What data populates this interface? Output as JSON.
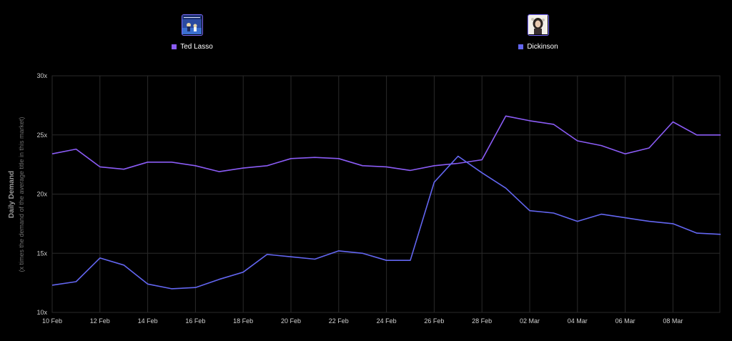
{
  "legend": [
    {
      "name": "Ted Lasso",
      "color": "#8b5cf6",
      "thumb_icon": "ted-lasso-poster"
    },
    {
      "name": "Dickinson",
      "color": "#6366f1",
      "thumb_icon": "dickinson-poster"
    }
  ],
  "chart_data": {
    "type": "line",
    "ylabel": "Daily Demand",
    "ylabel_sub": "(x times the demand of the average title in this market)",
    "xlabel": "",
    "ylim": [
      10,
      30
    ],
    "yticks": [
      10,
      15,
      20,
      25,
      30
    ],
    "ytick_labels": [
      "10x",
      "15x",
      "20x",
      "25x",
      "30x"
    ],
    "grid": true,
    "legend_position": "top",
    "x": [
      "10 Feb",
      "11 Feb",
      "12 Feb",
      "13 Feb",
      "14 Feb",
      "15 Feb",
      "16 Feb",
      "17 Feb",
      "18 Feb",
      "19 Feb",
      "20 Feb",
      "21 Feb",
      "22 Feb",
      "23 Feb",
      "24 Feb",
      "25 Feb",
      "26 Feb",
      "27 Feb",
      "28 Feb",
      "01 Mar",
      "02 Mar",
      "03 Mar",
      "04 Mar",
      "05 Mar",
      "06 Mar",
      "07 Mar",
      "08 Mar",
      "09 Mar",
      "10 Mar"
    ],
    "xtick_labels": [
      "10 Feb",
      "12 Feb",
      "14 Feb",
      "16 Feb",
      "18 Feb",
      "20 Feb",
      "22 Feb",
      "24 Feb",
      "26 Feb",
      "28 Feb",
      "02 Mar",
      "04 Mar",
      "06 Mar",
      "08 Mar"
    ],
    "series": [
      {
        "name": "Ted Lasso",
        "color": "#8b5cf6",
        "values": [
          23.4,
          23.8,
          22.3,
          22.1,
          22.7,
          22.7,
          22.4,
          21.9,
          22.2,
          22.4,
          23.0,
          23.1,
          23.0,
          22.4,
          22.3,
          22.0,
          22.4,
          22.6,
          22.9,
          26.6,
          26.2,
          25.9,
          24.5,
          24.1,
          23.4,
          23.9,
          26.1,
          25.0,
          25.0
        ]
      },
      {
        "name": "Dickinson",
        "color": "#6366f1",
        "values": [
          12.3,
          12.6,
          14.6,
          14.0,
          12.4,
          12.0,
          12.1,
          12.8,
          13.4,
          14.9,
          14.7,
          14.5,
          15.2,
          15.0,
          14.4,
          14.4,
          21.0,
          23.2,
          21.8,
          20.5,
          18.6,
          18.4,
          17.7,
          18.3,
          18.0,
          17.7,
          17.5,
          16.7,
          16.6
        ]
      }
    ]
  }
}
